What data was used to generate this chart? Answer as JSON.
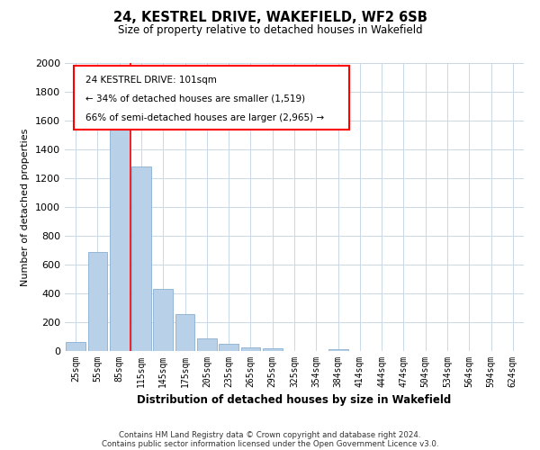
{
  "title": "24, KESTREL DRIVE, WAKEFIELD, WF2 6SB",
  "subtitle": "Size of property relative to detached houses in Wakefield",
  "xlabel": "Distribution of detached houses by size in Wakefield",
  "ylabel": "Number of detached properties",
  "bar_labels": [
    "25sqm",
    "55sqm",
    "85sqm",
    "115sqm",
    "145sqm",
    "175sqm",
    "205sqm",
    "235sqm",
    "265sqm",
    "295sqm",
    "325sqm",
    "354sqm",
    "384sqm",
    "414sqm",
    "444sqm",
    "474sqm",
    "504sqm",
    "534sqm",
    "564sqm",
    "594sqm",
    "624sqm"
  ],
  "bar_values": [
    65,
    690,
    1630,
    1280,
    430,
    255,
    90,
    50,
    25,
    20,
    0,
    0,
    15,
    0,
    0,
    0,
    0,
    0,
    0,
    0,
    0
  ],
  "bar_color": "#b8d0e8",
  "bar_edge_color": "#8ab0d0",
  "vline_color": "red",
  "vline_x_index": 2.5,
  "ylim": [
    0,
    2000
  ],
  "yticks": [
    0,
    200,
    400,
    600,
    800,
    1000,
    1200,
    1400,
    1600,
    1800,
    2000
  ],
  "ann_text_line1": "24 KESTREL DRIVE: 101sqm",
  "ann_text_line2": "← 34% of detached houses are smaller (1,519)",
  "ann_text_line3": "66% of semi-detached houses are larger (2,965) →",
  "footer_line1": "Contains HM Land Registry data © Crown copyright and database right 2024.",
  "footer_line2": "Contains public sector information licensed under the Open Government Licence v3.0.",
  "background_color": "#ffffff",
  "grid_color": "#c8d8e8"
}
